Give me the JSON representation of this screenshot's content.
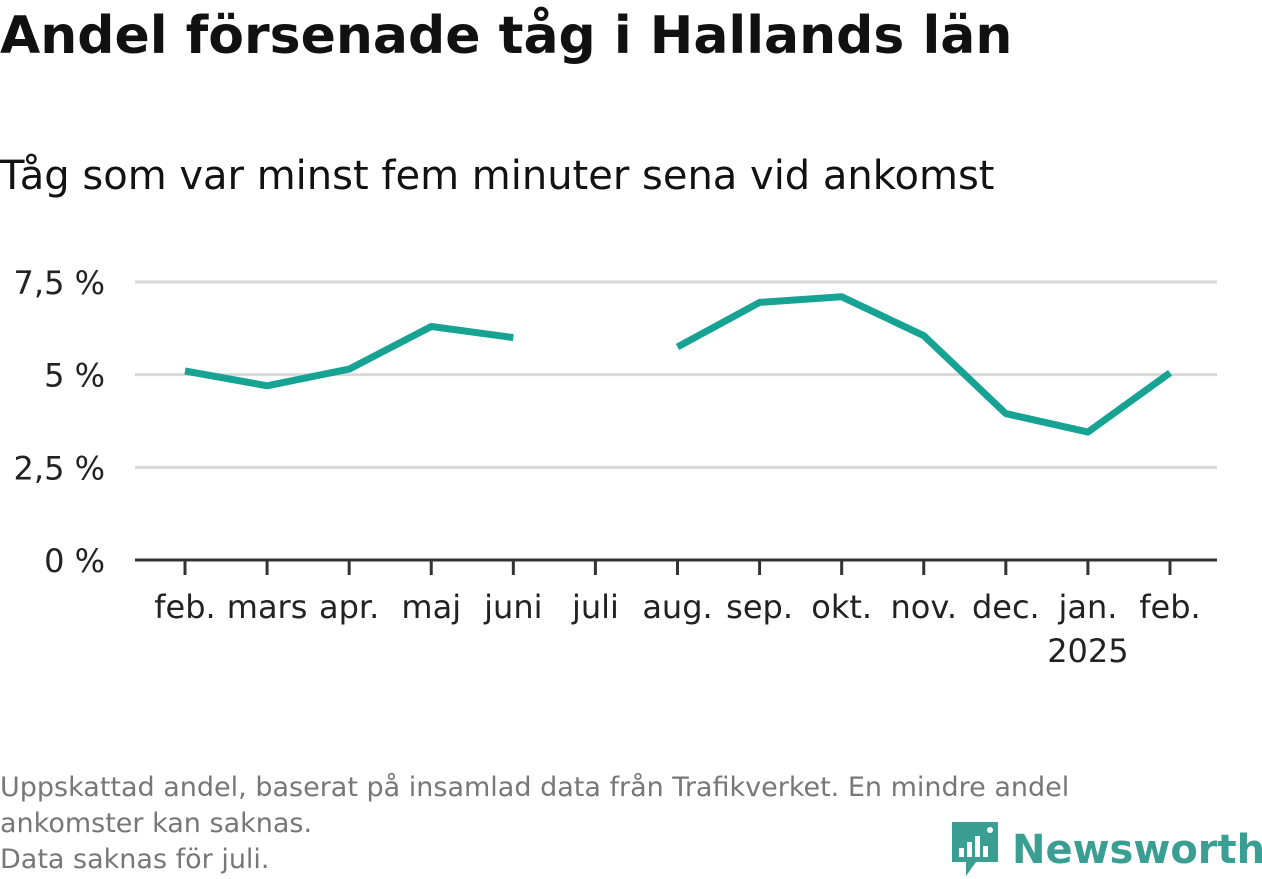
{
  "title": "Andel försenade tåg i Hallands län",
  "subtitle": "Tåg som var minst fem minuter sena vid ankomst",
  "footnote": {
    "line1": "Uppskattad andel, baserat på insamlad data från Trafikverket. En mindre andel",
    "line2": "ankomster kan saknas.",
    "line3": "Data saknas för juli."
  },
  "brand": {
    "name": "Newsworthy",
    "icon": "newsworthy-logo-icon",
    "color": "#3a9e93"
  },
  "colors": {
    "line": "#16a394",
    "grid": "#d9d9d9",
    "axis": "#333333",
    "tick_text": "#222222"
  },
  "chart_data": {
    "type": "line",
    "title": "Andel försenade tåg i Hallands län",
    "subtitle": "Tåg som var minst fem minuter sena vid ankomst",
    "xlabel": "",
    "ylabel": "",
    "categories": [
      "feb.",
      "mars",
      "apr.",
      "maj",
      "juni",
      "juli",
      "aug.",
      "sep.",
      "okt.",
      "nov.",
      "dec.",
      "jan.",
      "feb."
    ],
    "category_sublabels": [
      "",
      "",
      "",
      "",
      "",
      "",
      "",
      "",
      "",
      "",
      "",
      "2025",
      ""
    ],
    "series": [
      {
        "values": [
          5.1,
          4.7,
          5.15,
          6.3,
          6.0,
          null,
          5.75,
          6.95,
          7.1,
          6.05,
          3.95,
          3.45,
          5.05
        ]
      }
    ],
    "ylim": [
      0,
      7.5
    ],
    "yticks": [
      0,
      2.5,
      5,
      7.5
    ],
    "ytick_labels": [
      "0 %",
      "2,5 %",
      "5 %",
      "7,5 %"
    ],
    "grid": true,
    "legend": "none"
  }
}
